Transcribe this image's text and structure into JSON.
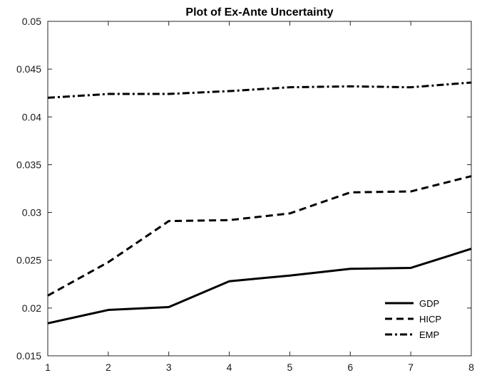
{
  "chart_data": {
    "type": "line",
    "title": "Plot of Ex-Ante Uncertainty",
    "xlabel": "",
    "ylabel": "",
    "x": [
      1,
      2,
      3,
      4,
      5,
      6,
      7,
      8
    ],
    "xlim": [
      1,
      8
    ],
    "ylim": [
      0.015,
      0.05
    ],
    "xticks": [
      "1",
      "2",
      "3",
      "4",
      "5",
      "6",
      "7",
      "8"
    ],
    "yticks": [
      "0.015",
      "0.02",
      "0.025",
      "0.03",
      "0.035",
      "0.04",
      "0.045",
      "0.05"
    ],
    "grid": false,
    "legend_position": "bottom-right",
    "series": [
      {
        "name": "GDP",
        "style": "solid",
        "color": "#000000",
        "values": [
          0.0184,
          0.0198,
          0.0201,
          0.0228,
          0.0234,
          0.0241,
          0.0242,
          0.0262
        ]
      },
      {
        "name": "HICP",
        "style": "dashed",
        "color": "#000000",
        "values": [
          0.0213,
          0.0248,
          0.0291,
          0.0292,
          0.0299,
          0.0321,
          0.0322,
          0.0338
        ]
      },
      {
        "name": "EMP",
        "style": "dash-dot",
        "color": "#000000",
        "values": [
          0.042,
          0.0424,
          0.0424,
          0.0427,
          0.0431,
          0.0432,
          0.0431,
          0.0436
        ]
      }
    ]
  }
}
